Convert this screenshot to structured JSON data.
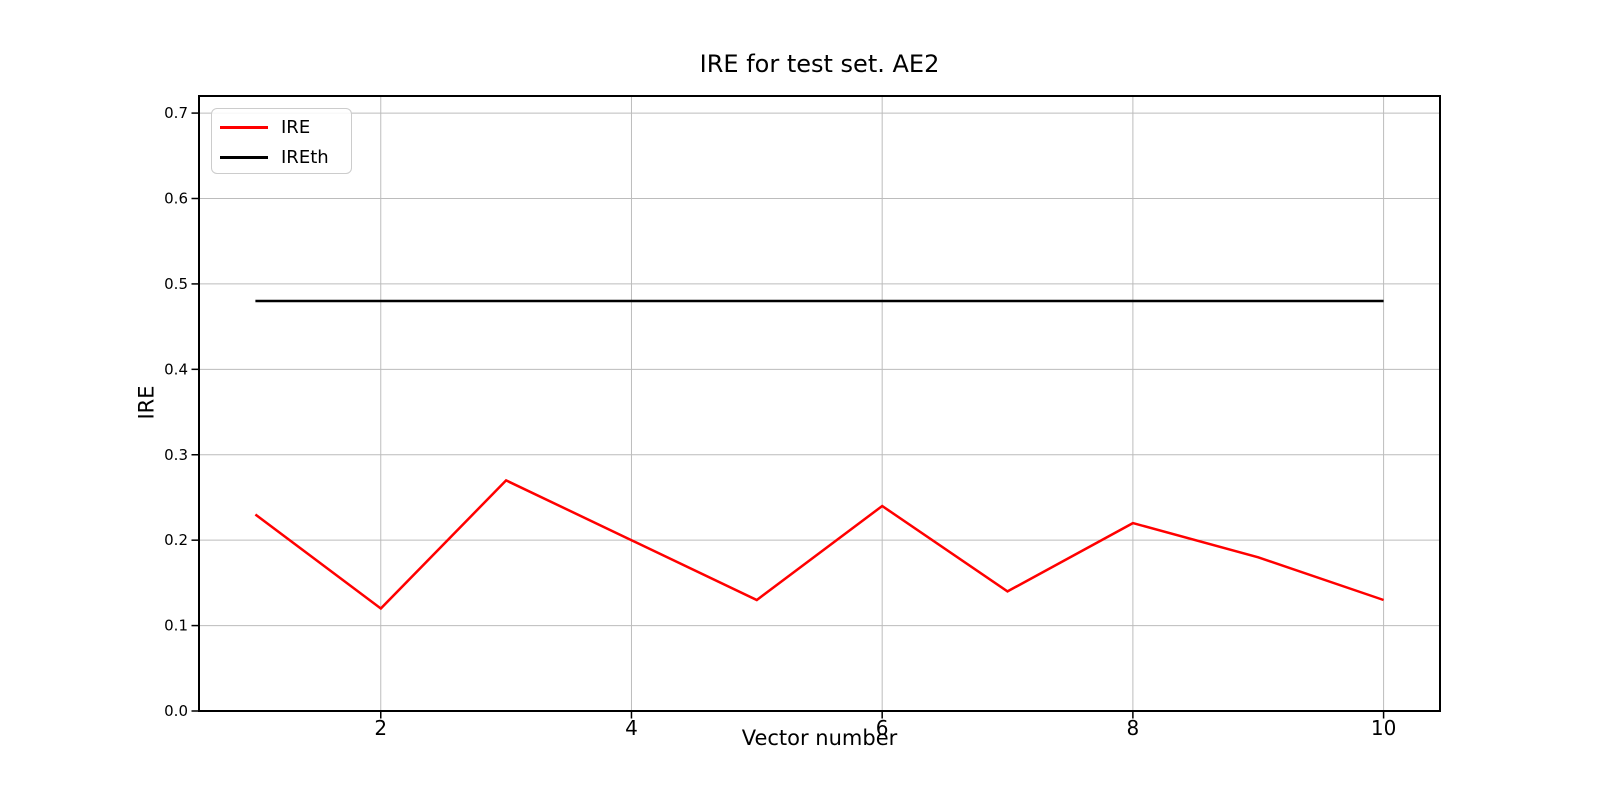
{
  "figure": {
    "title": "IRE for test set. AE2",
    "xlabel": "Vector number",
    "ylabel": "IRE"
  },
  "chart_data": {
    "type": "line",
    "title": "IRE for test set. AE2",
    "xlabel": "Vector number",
    "ylabel": "IRE",
    "x": [
      1,
      2,
      3,
      4,
      5,
      6,
      7,
      8,
      9,
      10
    ],
    "series": [
      {
        "name": "IRE",
        "color": "#ff0000",
        "values": [
          0.23,
          0.12,
          0.27,
          0.2,
          0.13,
          0.24,
          0.14,
          0.22,
          0.18,
          0.13
        ]
      },
      {
        "name": "IREth",
        "color": "#000000",
        "values": [
          0.48,
          0.48,
          0.48,
          0.48,
          0.48,
          0.48,
          0.48,
          0.48,
          0.48,
          0.48
        ]
      }
    ],
    "xtick_labels": [
      "2",
      "4",
      "6",
      "8",
      "10"
    ],
    "ytick_labels": [
      "0.0",
      "0.1",
      "0.2",
      "0.3",
      "0.4",
      "0.5",
      "0.6",
      "0.7"
    ],
    "xlim": [
      0.55,
      10.45
    ],
    "ylim": [
      0,
      0.72
    ],
    "grid": true,
    "legend_position": "upper left"
  },
  "colors": {
    "background": "#ffffff",
    "grid": "#bcbcbc",
    "spine": "#000000",
    "tick": "#000000",
    "ire_line": "#ff0000",
    "ireth_line": "#000000"
  }
}
